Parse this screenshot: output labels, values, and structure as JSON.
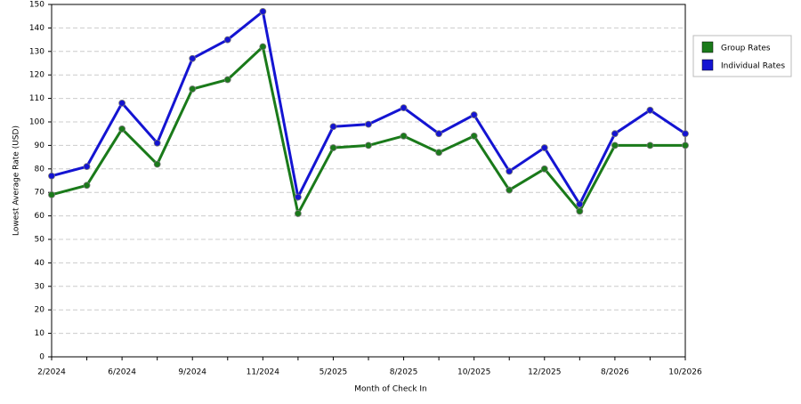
{
  "chart_data": {
    "type": "line",
    "x_label": "Month of Check In",
    "y_label": "Lowest Average Rate (USD)",
    "categories": [
      "2/2024",
      null,
      "6/2024",
      null,
      "9/2024",
      null,
      "11/2024",
      null,
      "5/2025",
      null,
      "8/2025",
      null,
      "10/2025",
      null,
      "12/2025",
      null,
      "8/2026",
      null,
      "10/2026"
    ],
    "series": [
      {
        "name": "Group Rates",
        "color": "#1a7a1a",
        "values": [
          69,
          73,
          97,
          82,
          114,
          118,
          132,
          61,
          89,
          90,
          94,
          87,
          94,
          71,
          80,
          62,
          90,
          90,
          90
        ]
      },
      {
        "name": "Individual Rates",
        "color": "#1414d2",
        "values": [
          77,
          81,
          108,
          91,
          127,
          135,
          147,
          68,
          98,
          99,
          106,
          95,
          103,
          79,
          89,
          65,
          95,
          105,
          95
        ]
      }
    ],
    "ylim": [
      0,
      150
    ],
    "yticks": [
      0,
      10,
      20,
      30,
      40,
      50,
      60,
      70,
      80,
      90,
      100,
      110,
      120,
      130,
      140,
      150
    ],
    "grid": true,
    "legend": "top-right"
  }
}
